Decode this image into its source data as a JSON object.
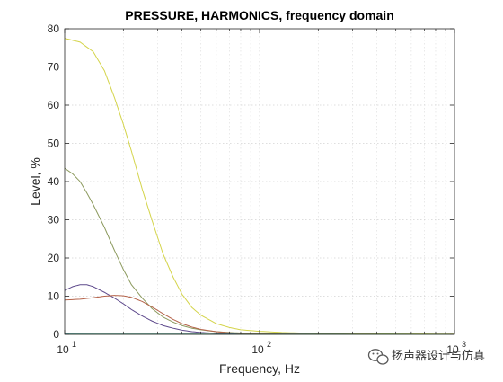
{
  "chart_data": {
    "type": "line",
    "title": "PRESSURE, HARMONICS, frequency domain",
    "xlabel": "Frequency, Hz",
    "ylabel": "Level, %",
    "xscale": "log",
    "xlim": [
      10,
      1000
    ],
    "ylim": [
      0,
      80
    ],
    "yticks": [
      0,
      10,
      20,
      30,
      40,
      50,
      60,
      70,
      80
    ],
    "ytick_labels": [
      "0",
      "10",
      "20",
      "30",
      "40",
      "50",
      "60",
      "70",
      "80"
    ],
    "xticks": [
      10,
      100,
      1000
    ],
    "xtick_labels": [
      {
        "base": "10",
        "exp": "1"
      },
      {
        "base": "10",
        "exp": "2"
      },
      {
        "base": "10",
        "exp": "3"
      }
    ],
    "grid": true,
    "legend": "none",
    "series": [
      {
        "color": "#d4d44a",
        "x": [
          10,
          12,
          14,
          16,
          18,
          20,
          22,
          25,
          28,
          32,
          36,
          40,
          45,
          50,
          60,
          70,
          80,
          100,
          130,
          160,
          200,
          300,
          500,
          1000
        ],
        "y": [
          77.5,
          76.5,
          74,
          69,
          62,
          55,
          48,
          38,
          30,
          21,
          15,
          10.5,
          7,
          5,
          2.8,
          1.8,
          1.2,
          0.8,
          0.5,
          0.35,
          0.25,
          0.15,
          0.1,
          0.05
        ]
      },
      {
        "color": "#8c9a5e",
        "x": [
          10,
          11,
          12,
          13,
          14,
          16,
          18,
          20,
          22,
          25,
          28,
          32,
          36,
          40,
          45,
          50,
          60,
          70,
          80,
          100,
          150,
          200,
          500,
          1000
        ],
        "y": [
          43.5,
          42,
          40,
          37,
          34,
          28,
          22,
          17,
          13,
          9.5,
          6.8,
          4.5,
          3.2,
          2.3,
          1.6,
          1.2,
          0.7,
          0.5,
          0.35,
          0.2,
          0.1,
          0.05,
          0.03,
          0.02
        ]
      },
      {
        "color": "#5e4a8c",
        "x": [
          10,
          11,
          12,
          13,
          14,
          16,
          18,
          20,
          22,
          25,
          28,
          32,
          36,
          40,
          45,
          50,
          60,
          70,
          80,
          100,
          200,
          500,
          1000
        ],
        "y": [
          11.5,
          12.5,
          13,
          13,
          12.5,
          11,
          9.5,
          8,
          6.5,
          4.8,
          3.5,
          2.3,
          1.6,
          1.1,
          0.7,
          0.5,
          0.25,
          0.15,
          0.1,
          0.05,
          0.02,
          0.01,
          0.01
        ]
      },
      {
        "color": "#b5634a",
        "x": [
          10,
          12,
          14,
          16,
          18,
          20,
          22,
          25,
          28,
          32,
          36,
          40,
          45,
          50,
          60,
          70,
          80,
          100,
          150,
          200,
          500,
          1000
        ],
        "y": [
          9,
          9.2,
          9.6,
          10,
          10.2,
          10.1,
          9.7,
          8.6,
          7.2,
          5.4,
          3.9,
          2.8,
          1.9,
          1.3,
          0.7,
          0.4,
          0.25,
          0.12,
          0.05,
          0.03,
          0.01,
          0.01
        ]
      },
      {
        "color": "#3a8fb7",
        "x": [
          10,
          100,
          1000
        ],
        "y": [
          0.08,
          0.03,
          0.01
        ]
      },
      {
        "color": "#4f9a52",
        "x": [
          10,
          100,
          1000
        ],
        "y": [
          0.04,
          0.02,
          0.01
        ]
      }
    ]
  },
  "watermark": {
    "text": "扬声器设计与仿真",
    "icon": "wechat-logo-icon"
  }
}
